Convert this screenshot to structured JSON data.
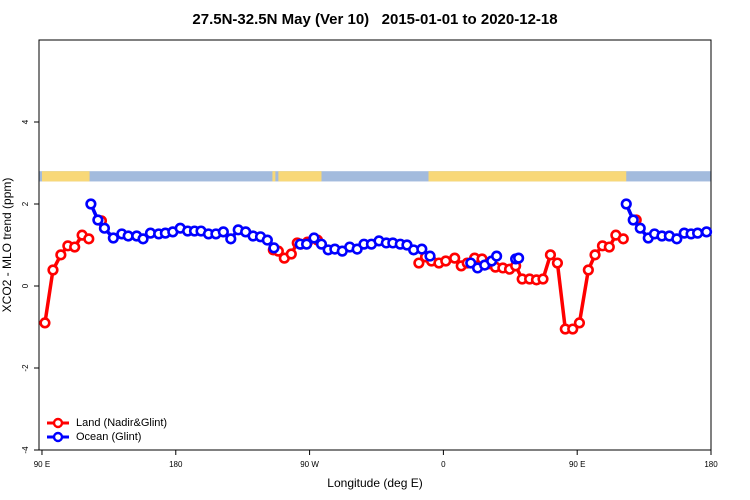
{
  "chart_data": {
    "type": "line",
    "title": "27.5N-32.5N May (Ver 10)   2015-01-01 to 2020-12-18",
    "xlabel": "Longitude (deg E)",
    "ylabel": "XCO2 - MLO trend (ppm)",
    "xlim": [
      88,
      540
    ],
    "ylim": [
      -4,
      6
    ],
    "xticks": [
      {
        "value": 90,
        "label": "90 E"
      },
      {
        "value": 180,
        "label": "180"
      },
      {
        "value": 270,
        "label": "90 W"
      },
      {
        "value": 360,
        "label": "0"
      },
      {
        "value": 450,
        "label": "90 E"
      },
      {
        "value": 540,
        "label": "180"
      }
    ],
    "yticks": [
      -4,
      -2,
      0,
      2,
      4
    ],
    "legend": "bottom-left",
    "band": {
      "ylim": [
        2.55,
        2.8
      ],
      "ocean_color": "#a3bbdd",
      "land_color": "#f8d878",
      "land": [
        [
          90,
          122
        ],
        [
          245,
          247
        ],
        [
          249,
          278
        ],
        [
          350,
          483
        ]
      ]
    },
    "series": [
      {
        "name": "Land (Nadir&Glint)",
        "color": "#ff0000",
        "x": [
          92,
          97.4,
          102.7,
          107.4,
          112,
          117,
          121.5,
          null,
          130,
          null,
          245.6,
          249,
          253,
          257.7,
          261.7,
          264,
          268.6,
          275.3,
          null,
          343.5,
          348,
          352,
          357,
          361.6,
          367.6,
          372,
          376,
          381,
          386,
          390,
          395,
          400,
          404.5,
          408.6,
          413,
          418,
          422.6,
          427,
          432,
          436.7,
          442,
          447,
          451.5,
          457.5,
          462,
          467,
          471.6,
          476,
          481,
          null,
          489.7
        ],
        "values": [
          -0.9,
          0.39,
          0.76,
          0.98,
          0.95,
          1.24,
          1.15,
          null,
          1.59,
          null,
          0.88,
          0.85,
          0.68,
          0.78,
          1.05,
          1.02,
          1.07,
          1.12,
          null,
          0.56,
          0.71,
          0.61,
          0.56,
          0.61,
          0.68,
          0.49,
          0.56,
          0.68,
          0.66,
          0.54,
          0.46,
          0.44,
          0.41,
          0.49,
          0.17,
          0.17,
          0.15,
          0.17,
          0.76,
          0.56,
          -1.05,
          -1.05,
          -0.9,
          0.39,
          0.76,
          0.98,
          0.95,
          1.24,
          1.15,
          null,
          1.61
        ]
      },
      {
        "name": "Ocean (Glint)",
        "color": "#0000ff",
        "x": [
          122.9,
          127.6,
          132,
          138,
          143.7,
          148,
          153.7,
          158,
          163,
          168.5,
          173,
          178,
          183,
          188,
          192.6,
          197,
          202,
          207,
          212,
          217,
          222,
          227,
          232,
          237,
          241.6,
          246,
          null,
          263.7,
          268,
          273,
          278,
          282.5,
          287,
          292,
          297,
          302,
          306.6,
          311.6,
          316.7,
          321.6,
          326,
          331,
          335.5,
          340,
          345.5,
          351,
          null,
          378.4,
          383,
          387.8,
          392.5,
          395.8,
          null,
          408.6,
          410.6,
          null,
          483,
          487.7,
          492.4,
          497.8,
          502,
          507,
          512,
          517,
          522,
          526.6,
          531,
          537
        ],
        "values": [
          2.0,
          1.61,
          1.41,
          1.17,
          1.27,
          1.22,
          1.22,
          1.15,
          1.29,
          1.27,
          1.29,
          1.32,
          1.41,
          1.34,
          1.34,
          1.34,
          1.27,
          1.27,
          1.32,
          1.15,
          1.37,
          1.32,
          1.22,
          1.2,
          1.12,
          0.93,
          null,
          1.02,
          1.02,
          1.17,
          1.02,
          0.88,
          0.9,
          0.85,
          0.95,
          0.9,
          1.02,
          1.02,
          1.1,
          1.05,
          1.05,
          1.02,
          1.0,
          0.88,
          0.9,
          0.73,
          null,
          0.56,
          0.44,
          0.51,
          0.61,
          0.73,
          null,
          0.66,
          0.68,
          null,
          2.0,
          1.61,
          1.41,
          1.17,
          1.27,
          1.22,
          1.22,
          1.15,
          1.29,
          1.27,
          1.29,
          1.32
        ]
      }
    ]
  }
}
